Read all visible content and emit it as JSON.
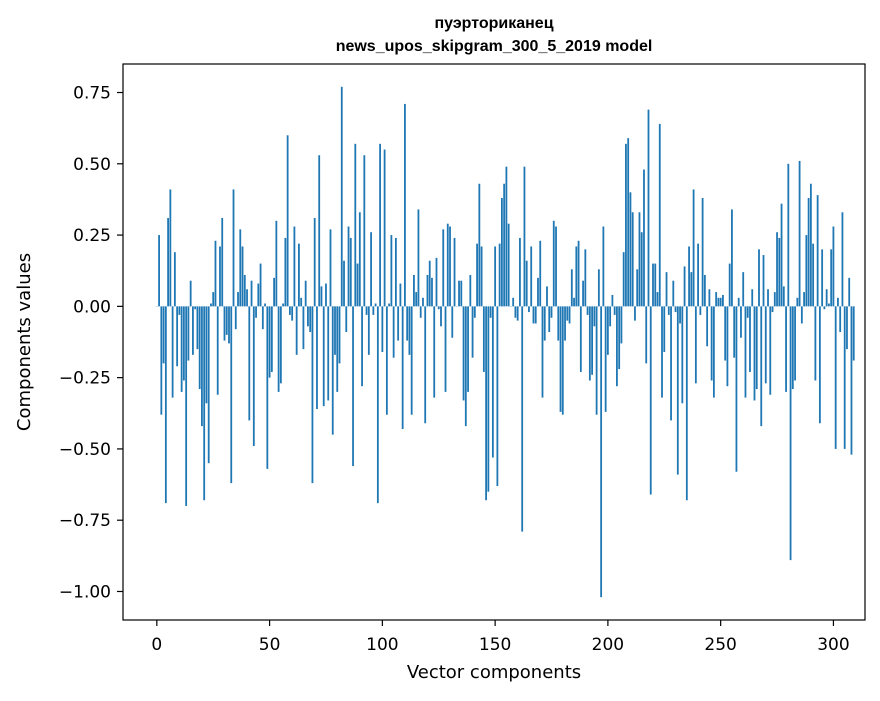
{
  "chart_data": {
    "type": "bar",
    "title": "пуэрториканец",
    "subtitle": "news_upos_skipgram_300_5_2019 model",
    "xlabel": "Vector components",
    "ylabel": "Components values",
    "xlim": [
      -15,
      314
    ],
    "ylim": [
      -1.1,
      0.85
    ],
    "xticks": [
      0,
      50,
      100,
      150,
      200,
      250,
      300
    ],
    "yticks": [
      -1.0,
      -0.75,
      -0.5,
      -0.25,
      0.0,
      0.25,
      0.5,
      0.75
    ],
    "ytick_labels": [
      "−1.00",
      "−0.75",
      "−0.50",
      "−0.25",
      "0.00",
      "0.25",
      "0.50",
      "0.75"
    ],
    "grid": false,
    "bar_color": "#1f77b4",
    "values": [
      0.0,
      0.25,
      -0.38,
      -0.2,
      -0.69,
      0.31,
      0.41,
      -0.32,
      0.19,
      -0.21,
      -0.03,
      -0.3,
      -0.26,
      -0.7,
      -0.19,
      0.09,
      -0.17,
      -0.01,
      -0.15,
      -0.29,
      -0.42,
      -0.68,
      -0.34,
      -0.55,
      0.01,
      0.05,
      0.23,
      -0.31,
      0.21,
      0.31,
      -0.12,
      -0.1,
      -0.13,
      -0.62,
      0.41,
      -0.08,
      0.05,
      0.27,
      0.21,
      0.11,
      0.06,
      -0.4,
      0.09,
      -0.49,
      -0.04,
      0.08,
      0.15,
      -0.08,
      0.01,
      -0.57,
      -0.25,
      -0.23,
      0.1,
      0.3,
      -0.3,
      -0.27,
      0.01,
      0.24,
      0.6,
      -0.03,
      -0.05,
      0.28,
      -0.17,
      0.22,
      0.03,
      -0.15,
      0.09,
      -0.07,
      -0.09,
      -0.62,
      0.31,
      -0.36,
      0.53,
      0.07,
      -0.35,
      0.08,
      -0.33,
      0.27,
      -0.45,
      -0.17,
      -0.3,
      -0.2,
      0.77,
      0.16,
      -0.09,
      0.28,
      0.24,
      -0.56,
      0.57,
      0.15,
      0.33,
      -0.28,
      0.53,
      -0.03,
      -0.17,
      0.26,
      -0.03,
      0.01,
      -0.69,
      0.57,
      -0.16,
      0.55,
      -0.38,
      0.01,
      0.25,
      -0.18,
      0.24,
      -0.12,
      0.08,
      -0.43,
      0.71,
      -0.12,
      -0.17,
      -0.38,
      0.11,
      0.05,
      0.34,
      -0.04,
      0.03,
      -0.41,
      0.11,
      0.16,
      0.1,
      -0.32,
      0.17,
      -0.01,
      -0.07,
      0.27,
      -0.3,
      0.29,
      0.28,
      -0.11,
      0.24,
      0.0,
      0.09,
      0.09,
      -0.33,
      -0.42,
      -0.3,
      0.11,
      -0.18,
      -0.04,
      0.22,
      0.43,
      0.21,
      -0.23,
      -0.68,
      -0.65,
      -0.04,
      -0.53,
      0.21,
      -0.63,
      0.22,
      0.38,
      0.43,
      0.49,
      0.29,
      0.0,
      0.03,
      -0.04,
      -0.05,
      0.24,
      -0.79,
      0.49,
      0.16,
      -0.02,
      0.21,
      -0.06,
      -0.06,
      0.1,
      0.23,
      -0.32,
      -0.12,
      0.07,
      -0.09,
      -0.04,
      0.3,
      0.28,
      -0.12,
      -0.37,
      -0.38,
      -0.12,
      -0.05,
      -0.06,
      0.13,
      0.03,
      0.21,
      0.23,
      -0.23,
      0.09,
      0.2,
      -0.03,
      -0.26,
      -0.24,
      -0.07,
      -0.38,
      0.13,
      -1.02,
      0.28,
      -0.37,
      -0.17,
      -0.07,
      0.04,
      -0.03,
      -0.28,
      -0.22,
      -0.13,
      0.19,
      0.57,
      0.59,
      0.4,
      0.33,
      -0.05,
      0.13,
      0.33,
      0.26,
      0.48,
      -0.2,
      0.69,
      -0.66,
      0.15,
      0.15,
      0.05,
      0.64,
      -0.32,
      -0.16,
      0.12,
      -0.03,
      -0.4,
      0.09,
      -0.02,
      -0.59,
      -0.06,
      -0.34,
      0.14,
      -0.68,
      0.21,
      0.12,
      0.41,
      -0.27,
      0.22,
      -0.03,
      0.38,
      0.11,
      -0.14,
      0.06,
      -0.26,
      -0.32,
      0.05,
      0.03,
      0.03,
      0.04,
      -0.19,
      -0.28,
      0.15,
      0.34,
      -0.18,
      -0.58,
      0.03,
      -0.11,
      0.12,
      -0.32,
      -0.04,
      -0.23,
      0.06,
      -0.33,
      -0.29,
      0.2,
      -0.42,
      0.18,
      -0.27,
      0.06,
      -0.31,
      -0.02,
      0.05,
      0.26,
      0.24,
      0.36,
      0.07,
      -0.3,
      0.5,
      -0.89,
      -0.29,
      -0.26,
      0.03,
      0.51,
      -0.06,
      0.05,
      0.25,
      0.38,
      0.43,
      0.22,
      -0.26,
      0.39,
      -0.41,
      0.2,
      -0.01,
      0.06,
      0.01,
      0.2,
      0.28,
      -0.5,
      0.03,
      -0.09,
      0.33,
      -0.5,
      -0.15,
      0.1,
      -0.52,
      -0.19
    ]
  }
}
